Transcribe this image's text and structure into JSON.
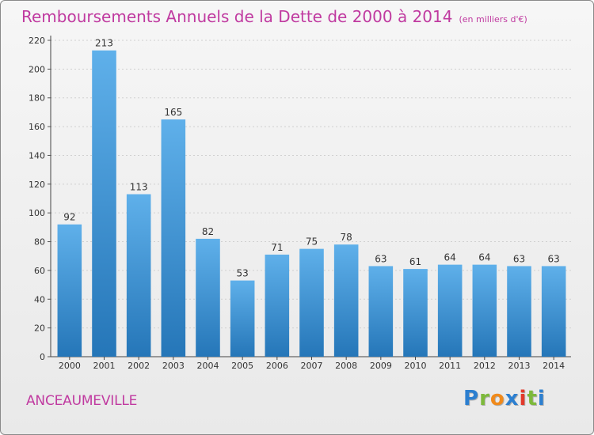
{
  "header": {
    "title": "Remboursements Annuels de la Dette de 2000 à 2014",
    "unit": "(en milliers d'€)"
  },
  "footer": {
    "town": "ANCEAUMEVILLE",
    "logo": [
      "P",
      "r",
      "o",
      "x",
      "i",
      "t",
      "i"
    ],
    "logo_colors": [
      "#2c7fd0",
      "#7db93b",
      "#f08a1c",
      "#2c7fd0",
      "#e23a2b",
      "#7db93b",
      "#2c7fd0"
    ]
  },
  "colors": {
    "bar_light": "#5fb0ea",
    "bar_dark": "#2576b8",
    "title": "#c03aa0",
    "grid": "#d0d0d0"
  },
  "chart_data": {
    "type": "bar",
    "title": "Remboursements Annuels de la Dette de 2000 à 2014",
    "subtitle": "(en milliers d'€)",
    "xlabel": "",
    "ylabel": "",
    "categories": [
      "2000",
      "2001",
      "2002",
      "2003",
      "2004",
      "2005",
      "2006",
      "2007",
      "2008",
      "2009",
      "2010",
      "2011",
      "2012",
      "2013",
      "2014"
    ],
    "values": [
      92,
      213,
      113,
      165,
      82,
      53,
      71,
      75,
      78,
      63,
      61,
      64,
      64,
      63,
      63
    ],
    "ylim": [
      0,
      220
    ],
    "yticks": [
      0,
      20,
      40,
      60,
      80,
      100,
      120,
      140,
      160,
      180,
      200,
      220
    ],
    "grid": true,
    "data_labels": true
  }
}
